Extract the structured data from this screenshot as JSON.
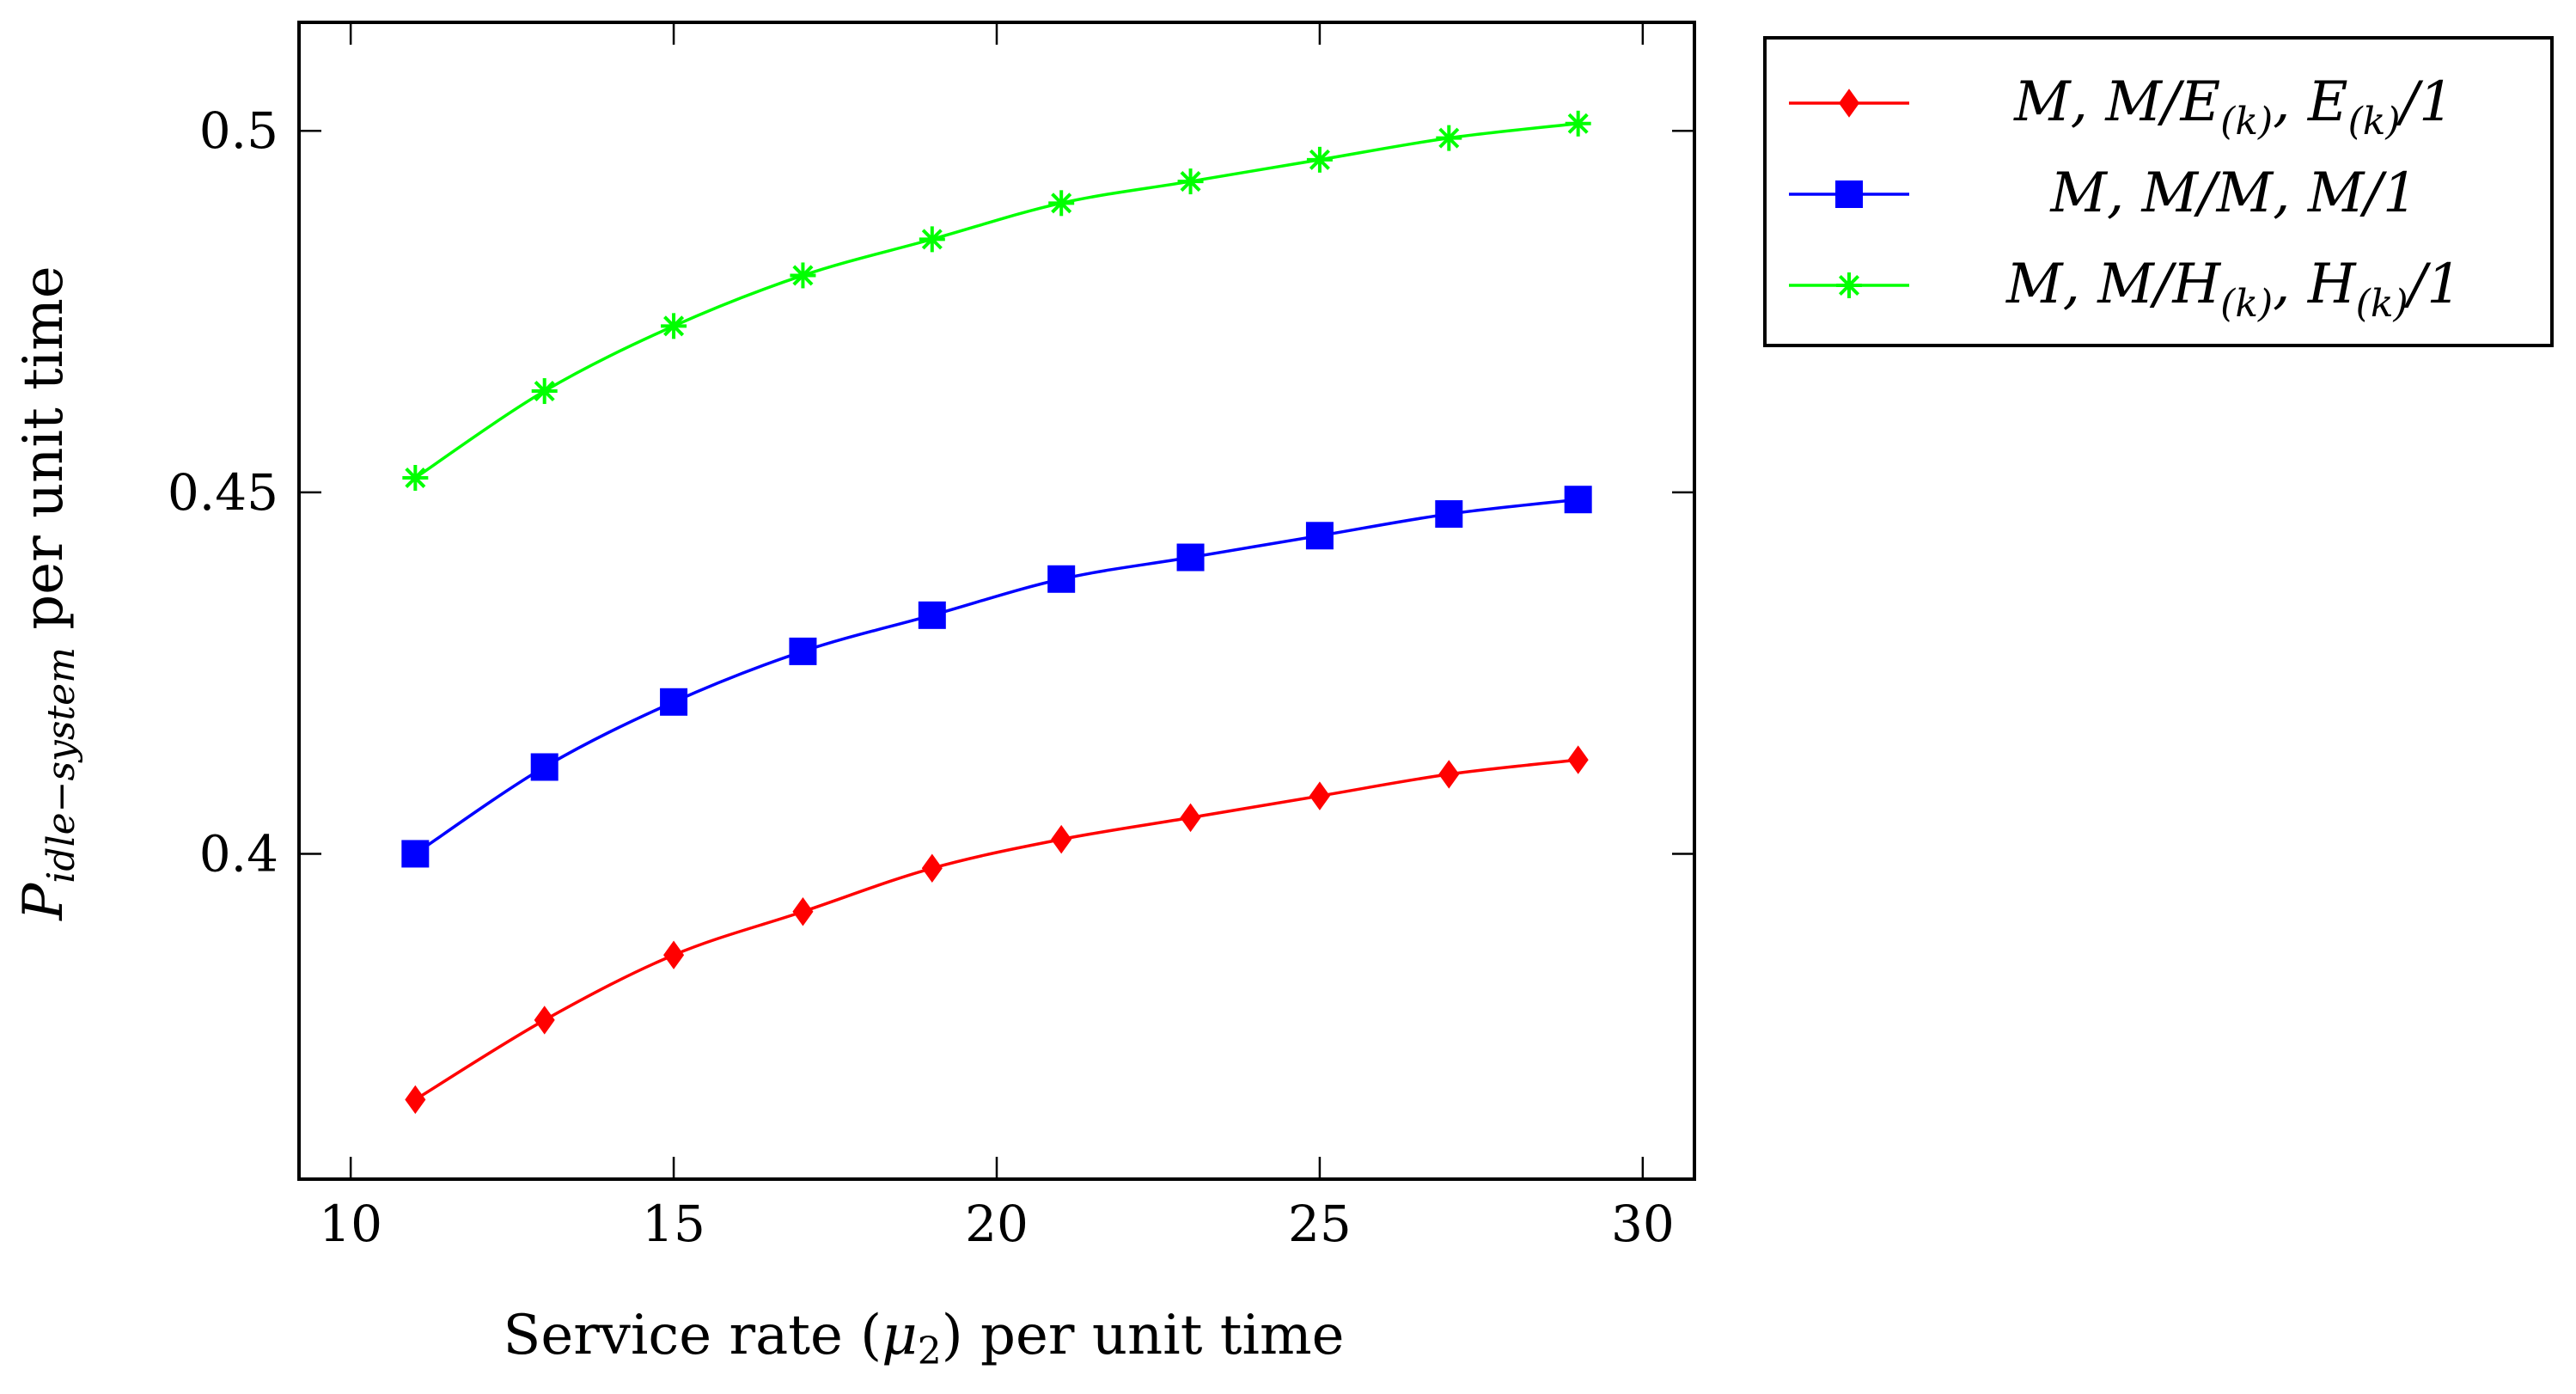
{
  "chart_data": {
    "type": "line",
    "title": "",
    "xlabel": {
      "prefix": "Service rate (",
      "symbol": "μ",
      "subscript": "2",
      "suffix": ") per unit time"
    },
    "ylabel": {
      "symbol": "P",
      "subscript": "idle−system",
      "suffix": " per unit time"
    },
    "xlim": [
      9.2,
      30.8
    ],
    "ylim": [
      0.355,
      0.515
    ],
    "xticks": [
      10,
      15,
      20,
      25,
      30
    ],
    "yticks": [
      0.4,
      0.45,
      0.5
    ],
    "ytick_labels": [
      "0.4",
      "0.45",
      "0.5"
    ],
    "legend_position": "outside-top-right",
    "x": [
      11,
      13,
      15,
      17,
      19,
      21,
      23,
      25,
      27,
      29
    ],
    "series": [
      {
        "name": "M,M/E(k),E(k)/1",
        "legend": {
          "pre": "M, M/E",
          "sub1": "(k)",
          "mid": ", E",
          "sub2": "(k)",
          "post": "/1"
        },
        "color": "#ff0000",
        "marker": "diamond",
        "values": [
          0.366,
          0.377,
          0.386,
          0.392,
          0.398,
          0.402,
          0.405,
          0.408,
          0.411,
          0.413
        ]
      },
      {
        "name": "M,M/M,M/1",
        "legend": {
          "pre": "M, M/M, M/1",
          "sub1": "",
          "mid": "",
          "sub2": "",
          "post": ""
        },
        "color": "#0000ff",
        "marker": "square",
        "values": [
          0.4,
          0.412,
          0.421,
          0.428,
          0.433,
          0.438,
          0.441,
          0.444,
          0.447,
          0.449
        ]
      },
      {
        "name": "M,M/H(k),H(k)/1",
        "legend": {
          "pre": "M, M/H",
          "sub1": "(k)",
          "mid": ", H",
          "sub2": "(k)",
          "post": "/1"
        },
        "color": "#00ff00",
        "marker": "asterisk",
        "values": [
          0.452,
          0.464,
          0.473,
          0.48,
          0.485,
          0.49,
          0.493,
          0.496,
          0.499,
          0.501
        ]
      }
    ]
  }
}
